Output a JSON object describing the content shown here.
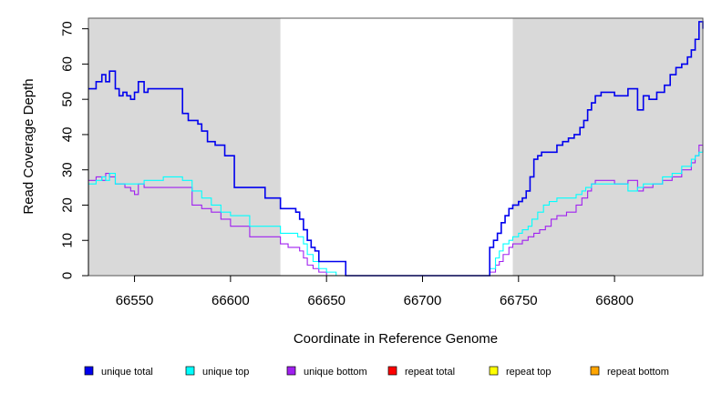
{
  "chart_data": {
    "type": "line",
    "xlabel": "Coordinate in Reference Genome",
    "ylabel": "Read Coverage Depth",
    "xlim": [
      66526,
      66846
    ],
    "ylim": [
      0,
      73
    ],
    "x_ticks": [
      66550,
      66600,
      66650,
      66700,
      66750,
      66800
    ],
    "y_ticks": [
      0,
      10,
      20,
      30,
      40,
      50,
      60,
      70
    ],
    "x_tick_labels": [
      "66550",
      "66600",
      "66650",
      "66700",
      "66750",
      "66800"
    ],
    "y_tick_labels": [
      "0",
      "10",
      "20",
      "30",
      "40",
      "50",
      "60",
      "70"
    ],
    "shaded_regions": [
      {
        "x0": 66526,
        "x1": 66626,
        "color": "#d9d9d9"
      },
      {
        "x0": 66747,
        "x1": 66846,
        "color": "#d9d9d9"
      }
    ],
    "legend_position": "bottom",
    "series": [
      {
        "name": "unique total",
        "color": "#0000ee",
        "x": [
          66526,
          66530,
          66533,
          66535,
          66537,
          66540,
          66542,
          66544,
          66546,
          66548,
          66550,
          66552,
          66555,
          66557,
          66562,
          66565,
          66570,
          66575,
          66578,
          66583,
          66585,
          66588,
          66592,
          66597,
          66602,
          66610,
          66618,
          66626,
          66630,
          66634,
          66636,
          66638,
          66640,
          66642,
          66644,
          66646,
          66648,
          66650,
          66655,
          66660,
          66665,
          66700,
          66733,
          66735,
          66737,
          66739,
          66741,
          66743,
          66745,
          66747,
          66750,
          66752,
          66754,
          66756,
          66758,
          66760,
          66762,
          66765,
          66770,
          66773,
          66776,
          66779,
          66782,
          66784,
          66786,
          66788,
          66790,
          66793,
          66800,
          66807,
          66812,
          66815,
          66818,
          66822,
          66826,
          66829,
          66832,
          66835,
          66838,
          66840,
          66842,
          66844,
          66846
        ],
        "values": [
          53,
          55,
          57,
          55,
          58,
          53,
          51,
          52,
          51,
          50,
          52,
          55,
          52,
          53,
          53,
          53,
          53,
          46,
          44,
          43,
          41,
          38,
          37,
          34,
          25,
          25,
          22,
          19,
          19,
          18,
          16,
          13,
          10,
          8,
          7,
          4,
          4,
          4,
          4,
          0,
          0,
          0,
          0,
          8,
          10,
          12,
          15,
          17,
          19,
          20,
          21,
          22,
          24,
          28,
          33,
          34,
          35,
          35,
          37,
          38,
          39,
          40,
          42,
          44,
          47,
          49,
          51,
          52,
          51,
          53,
          47,
          51,
          50,
          52,
          54,
          57,
          59,
          60,
          62,
          64,
          67,
          72,
          70
        ]
      },
      {
        "name": "unique top",
        "color": "#00ffff",
        "x": [
          66526,
          66530,
          66533,
          66535,
          66537,
          66540,
          66545,
          66550,
          66555,
          66565,
          66575,
          66580,
          66585,
          66590,
          66595,
          66600,
          66610,
          66626,
          66635,
          66638,
          66640,
          66643,
          66646,
          66650,
          66655,
          66660,
          66665,
          66700,
          66733,
          66735,
          66738,
          66740,
          66742,
          66745,
          66747,
          66750,
          66752,
          66755,
          66757,
          66760,
          66763,
          66766,
          66770,
          66775,
          66780,
          66783,
          66785,
          66788,
          66790,
          66800,
          66807,
          66812,
          66815,
          66820,
          66825,
          66830,
          66835,
          66840,
          66842,
          66844,
          66846
        ],
        "values": [
          26,
          27,
          28,
          27,
          29,
          26,
          26,
          26,
          27,
          28,
          27,
          24,
          22,
          20,
          18,
          17,
          14,
          12,
          11,
          9,
          6,
          4,
          2,
          1,
          0,
          0,
          0,
          0,
          0,
          2,
          5,
          7,
          9,
          10,
          11,
          12,
          13,
          14,
          16,
          18,
          20,
          21,
          22,
          22,
          23,
          24,
          25,
          26,
          26,
          26,
          24,
          25,
          26,
          26,
          28,
          29,
          31,
          33,
          34,
          35,
          36
        ]
      },
      {
        "name": "unique bottom",
        "color": "#a020f0",
        "x": [
          66526,
          66530,
          66533,
          66535,
          66537,
          66540,
          66545,
          66548,
          66550,
          66552,
          66555,
          66565,
          66575,
          66580,
          66585,
          66590,
          66595,
          66600,
          66610,
          66626,
          66630,
          66636,
          66638,
          66640,
          66643,
          66646,
          66650,
          66660,
          66665,
          66700,
          66733,
          66735,
          66738,
          66740,
          66742,
          66745,
          66747,
          66750,
          66752,
          66755,
          66758,
          66761,
          66764,
          66767,
          66770,
          66775,
          66780,
          66783,
          66786,
          66788,
          66790,
          66800,
          66807,
          66812,
          66815,
          66820,
          66825,
          66830,
          66835,
          66840,
          66842,
          66844,
          66846
        ],
        "values": [
          27,
          28,
          27,
          29,
          28,
          26,
          25,
          24,
          23,
          26,
          25,
          25,
          25,
          20,
          19,
          18,
          16,
          14,
          11,
          9,
          8,
          7,
          5,
          3,
          2,
          1,
          0,
          0,
          0,
          0,
          0,
          1,
          3,
          4,
          6,
          8,
          9,
          9,
          10,
          11,
          12,
          13,
          14,
          16,
          17,
          18,
          20,
          22,
          24,
          26,
          27,
          26,
          27,
          24,
          25,
          26,
          27,
          28,
          30,
          32,
          34,
          37,
          35
        ]
      },
      {
        "name": "repeat total",
        "color": "#ff0000",
        "x": [
          66526,
          66846
        ],
        "values": [
          0,
          0
        ]
      },
      {
        "name": "repeat top",
        "color": "#ffff00",
        "x": [
          66526,
          66846
        ],
        "values": [
          0,
          0
        ]
      },
      {
        "name": "repeat bottom",
        "color": "#ffa500",
        "x": [
          66526,
          66846
        ],
        "values": [
          0,
          0
        ]
      }
    ]
  }
}
